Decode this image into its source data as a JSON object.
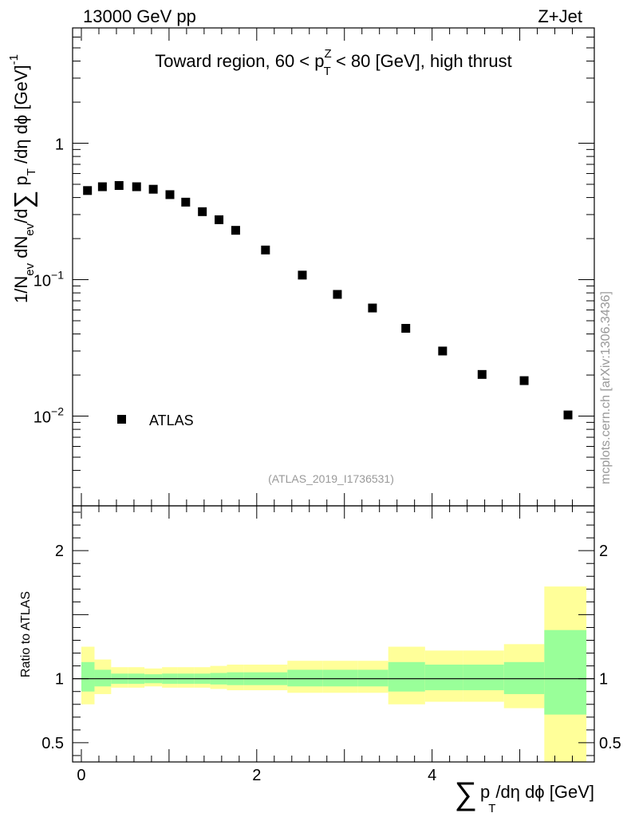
{
  "header": {
    "left": "13000 GeV pp",
    "right": "Z+Jet"
  },
  "watermark": "(ATLAS_2019_I1736531)",
  "side_credit": "mcplots.cern.ch [arXiv:1306.3436]",
  "colors": {
    "yellow_band": "#ffff99",
    "green_band": "#99ff99",
    "marker": "#000000"
  },
  "chart_data": [
    {
      "type": "scatter",
      "panel": "main",
      "title_parts": {
        "pre": "Toward region, 60 < p",
        "sup": "Z",
        "sub": "T",
        "post": " < 80 [GeV], high thrust"
      },
      "ylabel_parts": {
        "a": "1/N",
        "b": "ev",
        "c": " dN",
        "d": "ev",
        "e": "/d",
        "sigma": "∑",
        "f": " p",
        "g": "T",
        "h": " /dη dϕ  [GeV]",
        "i": "-1"
      },
      "yscale": "log",
      "ylim": [
        0.0022,
        7.0
      ],
      "xlim": [
        -0.1,
        5.85
      ],
      "y_ticks": [
        {
          "value": 1,
          "base": "1",
          "exp": ""
        },
        {
          "value": 0.1,
          "base": "10",
          "exp": "−1"
        },
        {
          "value": 0.01,
          "base": "10",
          "exp": "−2"
        }
      ],
      "legend": {
        "label": "ATLAS",
        "position": "lower-left"
      },
      "series": [
        {
          "name": "ATLAS",
          "x": [
            0.07,
            0.24,
            0.43,
            0.63,
            0.82,
            1.01,
            1.19,
            1.38,
            1.57,
            1.76,
            2.1,
            2.52,
            2.92,
            3.32,
            3.7,
            4.12,
            4.57,
            5.05,
            5.55
          ],
          "y": [
            0.45,
            0.48,
            0.49,
            0.48,
            0.46,
            0.42,
            0.37,
            0.315,
            0.275,
            0.23,
            0.165,
            0.108,
            0.078,
            0.062,
            0.044,
            0.03,
            0.0202,
            0.0182,
            0.0102
          ]
        }
      ]
    },
    {
      "type": "area",
      "panel": "ratio",
      "ylabel": "Ratio to ATLAS",
      "xlabel_parts": {
        "sigma": "∑",
        "p": "p",
        "sub": "T",
        "rest": "/dη dϕ [GeV]"
      },
      "ylim": [
        0.35,
        2.35
      ],
      "xlim": [
        -0.1,
        5.85
      ],
      "x_ticks": [
        {
          "value": 0,
          "label": "0"
        },
        {
          "value": 2,
          "label": "2"
        },
        {
          "value": 4,
          "label": "4"
        }
      ],
      "y_ticks": [
        {
          "value": 2,
          "label": "2"
        },
        {
          "value": 1,
          "label": "1"
        },
        {
          "value": 0.5,
          "label": "0.5"
        }
      ],
      "reference_line": 1,
      "bins": [
        0.0,
        0.15,
        0.34,
        0.53,
        0.72,
        0.92,
        1.1,
        1.29,
        1.47,
        1.66,
        1.85,
        2.35,
        2.75,
        3.15,
        3.5,
        3.92,
        4.35,
        4.82,
        5.28,
        5.76
      ],
      "yellow_lo": [
        0.8,
        0.88,
        0.93,
        0.93,
        0.94,
        0.93,
        0.93,
        0.93,
        0.92,
        0.91,
        0.91,
        0.89,
        0.89,
        0.89,
        0.8,
        0.82,
        0.82,
        0.77,
        0.33
      ],
      "yellow_hi": [
        1.25,
        1.15,
        1.09,
        1.09,
        1.08,
        1.09,
        1.09,
        1.09,
        1.1,
        1.11,
        1.11,
        1.14,
        1.14,
        1.14,
        1.25,
        1.22,
        1.22,
        1.27,
        1.72
      ],
      "green_lo": [
        0.9,
        0.94,
        0.96,
        0.96,
        0.965,
        0.96,
        0.96,
        0.96,
        0.955,
        0.95,
        0.95,
        0.94,
        0.94,
        0.94,
        0.9,
        0.91,
        0.91,
        0.88,
        0.72
      ],
      "green_hi": [
        1.13,
        1.07,
        1.04,
        1.04,
        1.035,
        1.04,
        1.04,
        1.04,
        1.045,
        1.05,
        1.05,
        1.07,
        1.07,
        1.07,
        1.13,
        1.11,
        1.11,
        1.13,
        1.38
      ]
    }
  ]
}
